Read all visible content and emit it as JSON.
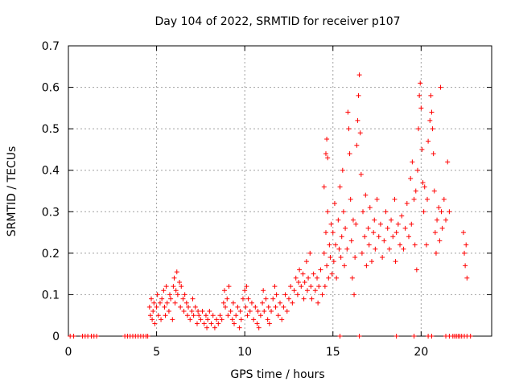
{
  "chart_data": {
    "type": "scatter",
    "title": "Day 104 of 2022, SRMTID for receiver p107",
    "xlabel": "GPS time / hours",
    "ylabel": "SRMTID / TECUs",
    "xlim": [
      0,
      24
    ],
    "ylim": [
      0,
      0.7
    ],
    "xticks": [
      0,
      5,
      10,
      15,
      20
    ],
    "yticks": [
      0,
      0.1,
      0.2,
      0.3,
      0.4,
      0.5,
      0.6,
      0.7
    ],
    "xtick_labels": [
      "0",
      "5",
      "10",
      "15",
      "20"
    ],
    "ytick_labels": [
      "0",
      "0.1",
      "0.2",
      "0.3",
      "0.4",
      "0.5",
      "0.6",
      "0.7"
    ],
    "grid": true,
    "marker": "+",
    "color": "#ff0000",
    "series": [
      {
        "name": "SRMTID",
        "points": [
          [
            0.1,
            0
          ],
          [
            0.3,
            0
          ],
          [
            0.8,
            0
          ],
          [
            0.95,
            0
          ],
          [
            1.1,
            0
          ],
          [
            1.3,
            0
          ],
          [
            1.45,
            0
          ],
          [
            1.6,
            0
          ],
          [
            3.2,
            0
          ],
          [
            3.35,
            0
          ],
          [
            3.5,
            0
          ],
          [
            3.65,
            0
          ],
          [
            3.8,
            0
          ],
          [
            3.95,
            0
          ],
          [
            4.1,
            0
          ],
          [
            4.25,
            0
          ],
          [
            4.4,
            0
          ],
          [
            4.5,
            0
          ],
          [
            4.6,
            0.07
          ],
          [
            4.65,
            0.05
          ],
          [
            4.7,
            0.09
          ],
          [
            4.75,
            0.04
          ],
          [
            4.8,
            0.06
          ],
          [
            4.85,
            0.08
          ],
          [
            4.9,
            0.03
          ],
          [
            5.0,
            0.07
          ],
          [
            5.05,
            0.1
          ],
          [
            5.1,
            0.05
          ],
          [
            5.2,
            0.08
          ],
          [
            5.25,
            0.04
          ],
          [
            5.3,
            0.09
          ],
          [
            5.4,
            0.11
          ],
          [
            5.45,
            0.07
          ],
          [
            5.5,
            0.05
          ],
          [
            5.55,
            0.12
          ],
          [
            5.6,
            0.08
          ],
          [
            5.7,
            0.06
          ],
          [
            5.75,
            0.1
          ],
          [
            5.8,
            0.09
          ],
          [
            5.9,
            0.04
          ],
          [
            5.95,
            0.12
          ],
          [
            6.0,
            0.14
          ],
          [
            6.05,
            0.08
          ],
          [
            6.1,
            0.11
          ],
          [
            6.15,
            0.155
          ],
          [
            6.2,
            0.1
          ],
          [
            6.3,
            0.13
          ],
          [
            6.35,
            0.07
          ],
          [
            6.4,
            0.12
          ],
          [
            6.5,
            0.09
          ],
          [
            6.55,
            0.06
          ],
          [
            6.6,
            0.1
          ],
          [
            6.7,
            0.08
          ],
          [
            6.75,
            0.05
          ],
          [
            6.8,
            0.07
          ],
          [
            6.9,
            0.04
          ],
          [
            7.0,
            0.06
          ],
          [
            7.05,
            0.09
          ],
          [
            7.1,
            0.05
          ],
          [
            7.2,
            0.07
          ],
          [
            7.3,
            0.03
          ],
          [
            7.35,
            0.06
          ],
          [
            7.4,
            0.05
          ],
          [
            7.5,
            0.04
          ],
          [
            7.6,
            0.06
          ],
          [
            7.7,
            0.03
          ],
          [
            7.8,
            0.05
          ],
          [
            7.85,
            0.02
          ],
          [
            7.9,
            0.04
          ],
          [
            8.0,
            0.06
          ],
          [
            8.1,
            0.03
          ],
          [
            8.2,
            0.05
          ],
          [
            8.3,
            0.02
          ],
          [
            8.4,
            0.04
          ],
          [
            8.5,
            0.03
          ],
          [
            8.6,
            0.05
          ],
          [
            8.7,
            0.04
          ],
          [
            8.8,
            0.08
          ],
          [
            8.85,
            0.11
          ],
          [
            8.9,
            0.07
          ],
          [
            9.0,
            0.09
          ],
          [
            9.05,
            0.05
          ],
          [
            9.1,
            0.12
          ],
          [
            9.2,
            0.06
          ],
          [
            9.3,
            0.04
          ],
          [
            9.35,
            0.08
          ],
          [
            9.4,
            0.03
          ],
          [
            9.5,
            0.05
          ],
          [
            9.6,
            0.07
          ],
          [
            9.7,
            0.02
          ],
          [
            9.75,
            0.06
          ],
          [
            9.8,
            0.04
          ],
          [
            9.9,
            0.09
          ],
          [
            10.0,
            0.11
          ],
          [
            10.05,
            0.07
          ],
          [
            10.1,
            0.12
          ],
          [
            10.15,
            0.05
          ],
          [
            10.2,
            0.09
          ],
          [
            10.3,
            0.06
          ],
          [
            10.4,
            0.08
          ],
          [
            10.5,
            0.04
          ],
          [
            10.6,
            0.07
          ],
          [
            10.7,
            0.03
          ],
          [
            10.75,
            0.06
          ],
          [
            10.8,
            0.02
          ],
          [
            10.9,
            0.05
          ],
          [
            11.0,
            0.08
          ],
          [
            11.05,
            0.11
          ],
          [
            11.1,
            0.06
          ],
          [
            11.2,
            0.09
          ],
          [
            11.3,
            0.04
          ],
          [
            11.35,
            0.07
          ],
          [
            11.4,
            0.03
          ],
          [
            11.5,
            0.06
          ],
          [
            11.6,
            0.09
          ],
          [
            11.7,
            0.12
          ],
          [
            11.75,
            0.07
          ],
          [
            11.8,
            0.1
          ],
          [
            11.9,
            0.05
          ],
          [
            12.0,
            0.08
          ],
          [
            12.1,
            0.04
          ],
          [
            12.2,
            0.07
          ],
          [
            12.3,
            0.1
          ],
          [
            12.4,
            0.06
          ],
          [
            12.5,
            0.09
          ],
          [
            12.6,
            0.12
          ],
          [
            12.7,
            0.08
          ],
          [
            12.8,
            0.11
          ],
          [
            12.9,
            0.14
          ],
          [
            13.0,
            0.1
          ],
          [
            13.05,
            0.13
          ],
          [
            13.1,
            0.16
          ],
          [
            13.2,
            0.12
          ],
          [
            13.3,
            0.15
          ],
          [
            13.35,
            0.09
          ],
          [
            13.4,
            0.13
          ],
          [
            13.5,
            0.18
          ],
          [
            13.55,
            0.11
          ],
          [
            13.6,
            0.14
          ],
          [
            13.7,
            0.2
          ],
          [
            13.75,
            0.12
          ],
          [
            13.8,
            0.09
          ],
          [
            13.9,
            0.15
          ],
          [
            14.0,
            0.11
          ],
          [
            14.1,
            0.14
          ],
          [
            14.15,
            0.08
          ],
          [
            14.2,
            0.12
          ],
          [
            14.3,
            0.16
          ],
          [
            14.4,
            0.1
          ],
          [
            14.5,
            0.2
          ],
          [
            14.55,
            0.12
          ],
          [
            14.6,
            0.25
          ],
          [
            14.65,
            0.17
          ],
          [
            14.7,
            0.3
          ],
          [
            14.75,
            0.14
          ],
          [
            14.8,
            0.22
          ],
          [
            14.85,
            0.19
          ],
          [
            14.9,
            0.27
          ],
          [
            14.95,
            0.15
          ],
          [
            14.5,
            0.36
          ],
          [
            14.6,
            0.44
          ],
          [
            14.65,
            0.475
          ],
          [
            14.7,
            0.43
          ],
          [
            15.0,
            0.25
          ],
          [
            15.05,
            0.18
          ],
          [
            15.1,
            0.32
          ],
          [
            15.15,
            0.22
          ],
          [
            15.2,
            0.14
          ],
          [
            15.3,
            0.28
          ],
          [
            15.35,
            0.21
          ],
          [
            15.4,
            0.36
          ],
          [
            15.45,
            0.19
          ],
          [
            15.5,
            0.24
          ],
          [
            15.55,
            0.4
          ],
          [
            15.6,
            0.3
          ],
          [
            15.65,
            0.17
          ],
          [
            15.7,
            0.26
          ],
          [
            15.8,
            0.21
          ],
          [
            15.85,
            0.54
          ],
          [
            15.9,
            0.5
          ],
          [
            15.95,
            0.44
          ],
          [
            16.0,
            0.33
          ],
          [
            16.05,
            0.23
          ],
          [
            16.1,
            0.14
          ],
          [
            16.15,
            0.28
          ],
          [
            16.2,
            0.1
          ],
          [
            16.25,
            0.19
          ],
          [
            16.3,
            0.27
          ],
          [
            16.35,
            0.46
          ],
          [
            16.4,
            0.52
          ],
          [
            16.45,
            0.58
          ],
          [
            16.5,
            0.63
          ],
          [
            16.55,
            0.49
          ],
          [
            16.6,
            0.39
          ],
          [
            16.65,
            0.2
          ],
          [
            16.7,
            0.3
          ],
          [
            16.8,
            0.24
          ],
          [
            16.85,
            0.34
          ],
          [
            16.9,
            0.17
          ],
          [
            17.0,
            0.26
          ],
          [
            17.05,
            0.22
          ],
          [
            17.1,
            0.31
          ],
          [
            17.2,
            0.18
          ],
          [
            17.3,
            0.25
          ],
          [
            17.35,
            0.28
          ],
          [
            17.4,
            0.21
          ],
          [
            17.5,
            0.33
          ],
          [
            17.6,
            0.24
          ],
          [
            17.7,
            0.27
          ],
          [
            17.8,
            0.19
          ],
          [
            17.9,
            0.23
          ],
          [
            18.0,
            0.3
          ],
          [
            18.1,
            0.26
          ],
          [
            18.2,
            0.21
          ],
          [
            18.3,
            0.28
          ],
          [
            18.4,
            0.24
          ],
          [
            18.5,
            0.33
          ],
          [
            18.55,
            0.18
          ],
          [
            18.6,
            0.25
          ],
          [
            18.7,
            0.27
          ],
          [
            18.8,
            0.22
          ],
          [
            18.9,
            0.29
          ],
          [
            19.0,
            0.21
          ],
          [
            19.1,
            0.26
          ],
          [
            19.2,
            0.32
          ],
          [
            19.3,
            0.24
          ],
          [
            19.4,
            0.38
          ],
          [
            19.45,
            0.27
          ],
          [
            19.5,
            0.42
          ],
          [
            19.6,
            0.33
          ],
          [
            19.65,
            0.22
          ],
          [
            19.7,
            0.35
          ],
          [
            19.75,
            0.16
          ],
          [
            19.8,
            0.4
          ],
          [
            19.85,
            0.5
          ],
          [
            19.9,
            0.58
          ],
          [
            19.95,
            0.61
          ],
          [
            20.0,
            0.55
          ],
          [
            20.05,
            0.45
          ],
          [
            20.1,
            0.37
          ],
          [
            20.15,
            0.3
          ],
          [
            20.2,
            0.36
          ],
          [
            20.3,
            0.22
          ],
          [
            20.35,
            0.33
          ],
          [
            20.4,
            0.47
          ],
          [
            20.5,
            0.52
          ],
          [
            20.55,
            0.58
          ],
          [
            20.6,
            0.54
          ],
          [
            20.65,
            0.5
          ],
          [
            20.7,
            0.44
          ],
          [
            20.75,
            0.35
          ],
          [
            20.8,
            0.25
          ],
          [
            20.85,
            0.2
          ],
          [
            20.9,
            0.28
          ],
          [
            21.0,
            0.31
          ],
          [
            21.05,
            0.23
          ],
          [
            21.1,
            0.6
          ],
          [
            21.15,
            0.3
          ],
          [
            21.2,
            0.26
          ],
          [
            21.3,
            0.33
          ],
          [
            21.4,
            0.28
          ],
          [
            21.5,
            0.42
          ],
          [
            21.6,
            0.3
          ],
          [
            22.4,
            0.25
          ],
          [
            22.45,
            0.2
          ],
          [
            22.5,
            0.17
          ],
          [
            22.55,
            0.22
          ],
          [
            22.6,
            0.14
          ],
          [
            15.4,
            0
          ],
          [
            16.5,
            0
          ],
          [
            18.6,
            0
          ],
          [
            19.6,
            0
          ],
          [
            20.4,
            0
          ],
          [
            20.6,
            0
          ],
          [
            21.4,
            0
          ],
          [
            21.6,
            0
          ],
          [
            21.8,
            0
          ],
          [
            21.9,
            0
          ],
          [
            22.0,
            0
          ],
          [
            22.1,
            0
          ],
          [
            22.2,
            0
          ],
          [
            22.3,
            0
          ],
          [
            22.45,
            0
          ],
          [
            22.6,
            0
          ],
          [
            22.8,
            0
          ]
        ]
      }
    ]
  }
}
